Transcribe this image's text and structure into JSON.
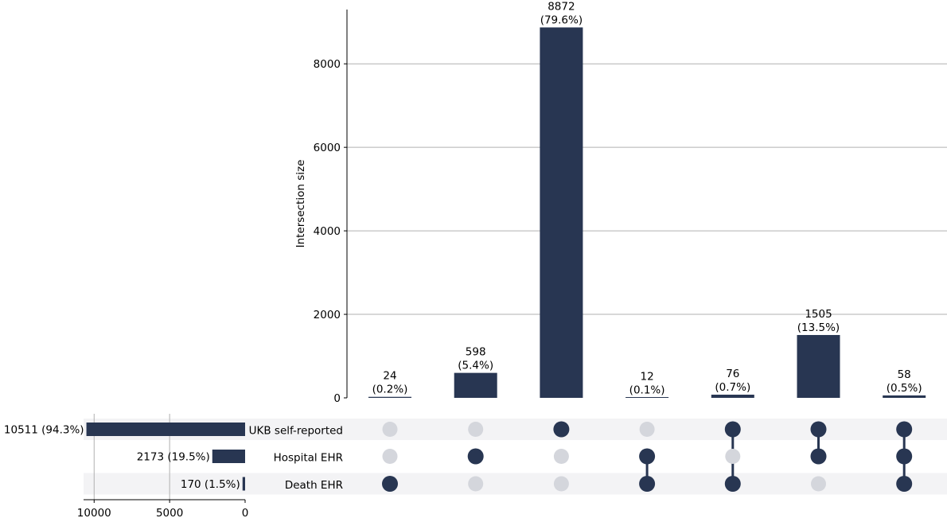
{
  "chart_data": {
    "type": "upset",
    "intersections": {
      "ylabel": "Intersection size",
      "ylim": [
        0,
        9300
      ],
      "yticks": [
        0,
        2000,
        4000,
        6000,
        8000
      ],
      "yticks_text": [
        "0",
        "2000",
        "4000",
        "6000",
        "8000"
      ],
      "values": [
        24,
        598,
        8872,
        12,
        76,
        1505,
        58
      ],
      "value_labels": [
        "24",
        "598",
        "8872",
        "12",
        "76",
        "1505",
        "58"
      ],
      "percent_labels": [
        "(0.2%)",
        "(5.4%)",
        "(79.6%)",
        "(0.1%)",
        "(0.7%)",
        "(13.5%)",
        "(0.5%)"
      ],
      "membership": [
        [
          false,
          false,
          true
        ],
        [
          false,
          true,
          false
        ],
        [
          true,
          false,
          false
        ],
        [
          false,
          true,
          true
        ],
        [
          true,
          false,
          true
        ],
        [
          true,
          true,
          false
        ],
        [
          true,
          true,
          true
        ]
      ]
    },
    "sets": {
      "names": [
        "UKB self-reported",
        "Hospital EHR",
        "Death EHR"
      ],
      "values": [
        10511,
        2173,
        170
      ],
      "labels": [
        "10511 (94.3%)",
        "2173 (19.5%)",
        "170 (1.5%)"
      ],
      "xlim": [
        10700,
        0
      ],
      "xticks": [
        10000,
        5000,
        0
      ],
      "xticks_text": [
        "10000",
        "5000",
        "0"
      ]
    },
    "grid": true,
    "colors": {
      "bar": "#283652",
      "dot_active": "#283652",
      "dot_inactive": "#d4d6dc",
      "stripe": "#f3f3f5",
      "grid": "#b0b0b0"
    }
  }
}
